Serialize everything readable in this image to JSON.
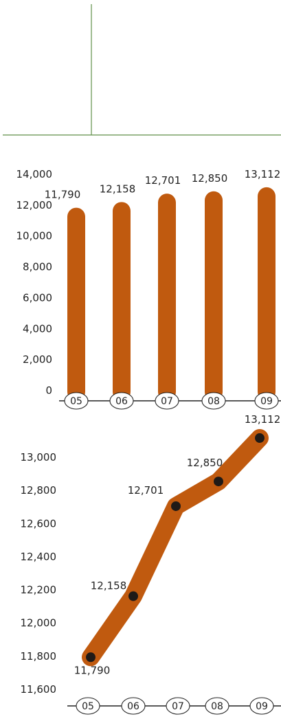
{
  "colors": {
    "bar": "#c05a0f",
    "line": "#c05a0f",
    "marker": "#1f1a17",
    "divider": "#5f8f48",
    "axis": "#222222",
    "text": "#222222"
  },
  "chart_data": [
    {
      "type": "bar",
      "categories": [
        "05",
        "06",
        "07",
        "08",
        "09"
      ],
      "values": [
        11790,
        12158,
        12701,
        12850,
        13112
      ],
      "data_labels": [
        "11,790",
        "12,158",
        "12,701",
        "12,850",
        "13,112"
      ],
      "yticks": [
        "0",
        "2,000",
        "4,000",
        "6,000",
        "8,000",
        "10,000",
        "12,000",
        "14,000"
      ],
      "ylim": [
        0,
        14000
      ],
      "grid": false,
      "category_style": "circled"
    },
    {
      "type": "line",
      "categories": [
        "05",
        "06",
        "07",
        "08",
        "09"
      ],
      "values": [
        11790,
        12158,
        12701,
        12850,
        13112
      ],
      "data_labels": [
        "11,790",
        "12,158",
        "12,701",
        "12,850",
        "13,112"
      ],
      "yticks": [
        "11,600",
        "11,800",
        "12,000",
        "12,200",
        "12,400",
        "12,600",
        "12,800",
        "13,000"
      ],
      "ylim": [
        11600,
        13000
      ],
      "grid": false,
      "category_style": "circled"
    }
  ]
}
